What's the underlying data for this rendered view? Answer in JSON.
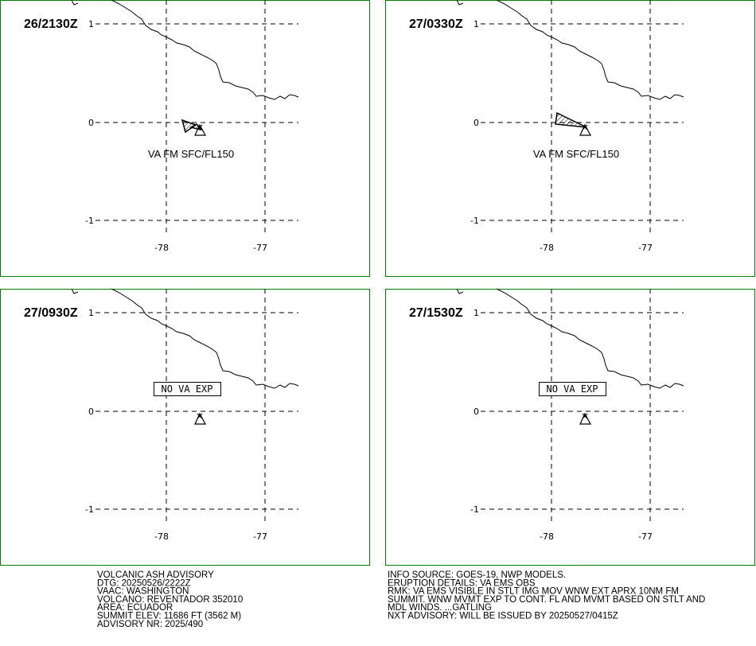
{
  "panels": [
    {
      "time": "26/2130Z",
      "label": "VA FM SFC/FL150"
    },
    {
      "time": "27/0330Z",
      "label": "VA FM SFC/FL150"
    },
    {
      "time": "27/0930Z",
      "label": "NO VA EXP"
    },
    {
      "time": "27/1530Z",
      "label": "NO VA EXP"
    }
  ],
  "lat_ticks": [
    "1",
    "0",
    "-1"
  ],
  "lon_ticks": [
    "-78",
    "-77"
  ],
  "left_text": [
    "VOLCANIC ASH ADVISORY",
    "DTG: 20250526/2222Z",
    "VAAC: WASHINGTON",
    "VOLCANO: REVENTADOR 352010",
    "AREA: ECUADOR",
    "SUMMIT ELEV: 11686 FT (3562 M)",
    "ADVISORY NR: 2025/490"
  ],
  "right_text": [
    "INFO SOURCE: GOES-19, NWP MODELS.",
    "ERUPTION DETAILS: VA EMS OBS",
    "RMK: VA EMS VISIBLE IN STLT IMG MOV WNW EXT APRX 10NM FM",
    "SUMMIT. WNW MVMT EXP TO CONT. FL AND MVMT BASED ON STLT AND",
    "MDL WINDS. ...GATLING",
    "NXT ADVISORY: WILL BE ISSUED BY 20250527/0415Z"
  ]
}
